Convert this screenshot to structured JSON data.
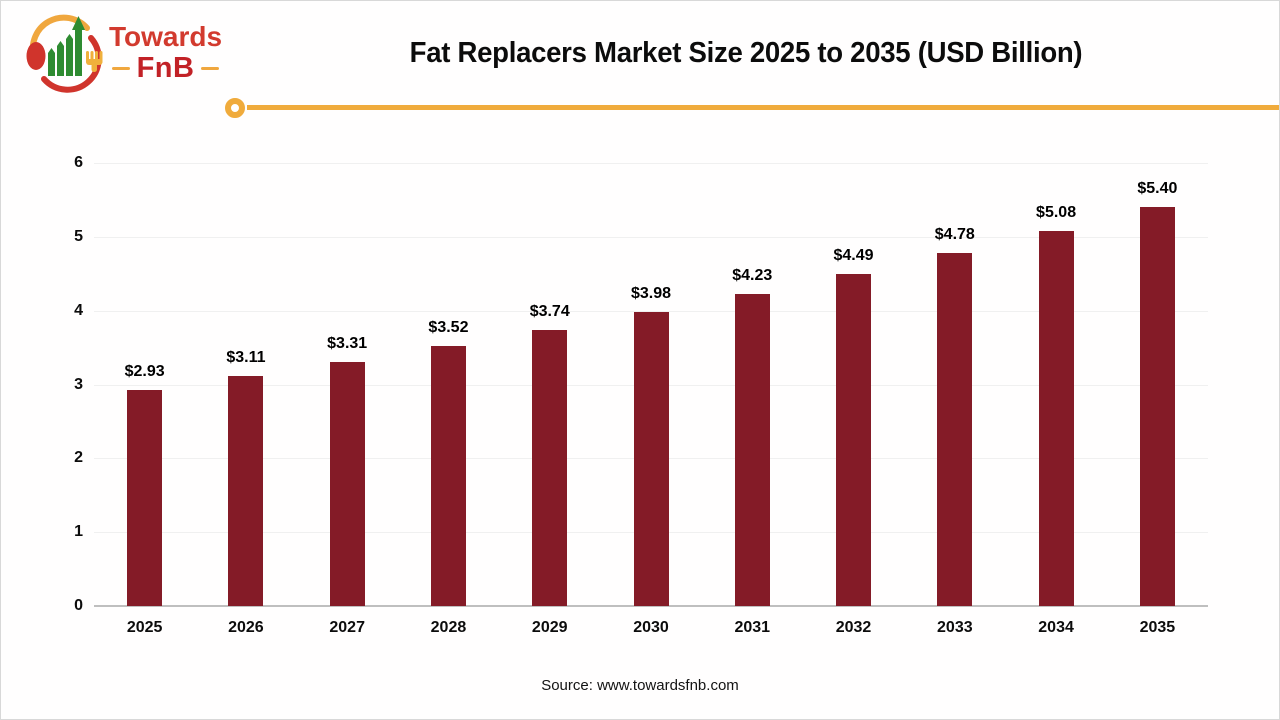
{
  "brand": {
    "name_top": "Towards",
    "name_bottom": "FnB"
  },
  "header": {
    "title": "Fat Replacers Market Size 2025 to 2035 (USD Billion)"
  },
  "footer": {
    "source_label": "Source: www.towardsfnb.com"
  },
  "colors": {
    "bar": "#841b27",
    "accent_yellow": "#f0ab3c",
    "brand_red": "#d23a2e",
    "brand_dark_red": "#c22126",
    "logo_green": "#2e8b31",
    "gridline": "#f0f0f0",
    "axis_line": "#bfbfbf",
    "text": "#0c0c0c"
  },
  "chart_data": {
    "type": "bar",
    "title": "Fat Replacers Market Size 2025 to 2035 (USD Billion)",
    "categories": [
      "2025",
      "2026",
      "2027",
      "2028",
      "2029",
      "2030",
      "2031",
      "2032",
      "2033",
      "2034",
      "2035"
    ],
    "values": [
      2.93,
      3.11,
      3.31,
      3.52,
      3.74,
      3.98,
      4.23,
      4.49,
      4.78,
      5.08,
      5.4
    ],
    "value_labels": [
      "$2.93",
      "$3.11",
      "$3.31",
      "$3.52",
      "$3.74",
      "$3.98",
      "$4.23",
      "$4.49",
      "$4.78",
      "$5.08",
      "$5.40"
    ],
    "xlabel": "",
    "ylabel": "",
    "ylim": [
      0,
      6
    ],
    "yticks": [
      "0",
      "1",
      "2",
      "3",
      "4",
      "5",
      "6"
    ],
    "grid": true,
    "legend": null,
    "bar_color": "#841b27"
  }
}
